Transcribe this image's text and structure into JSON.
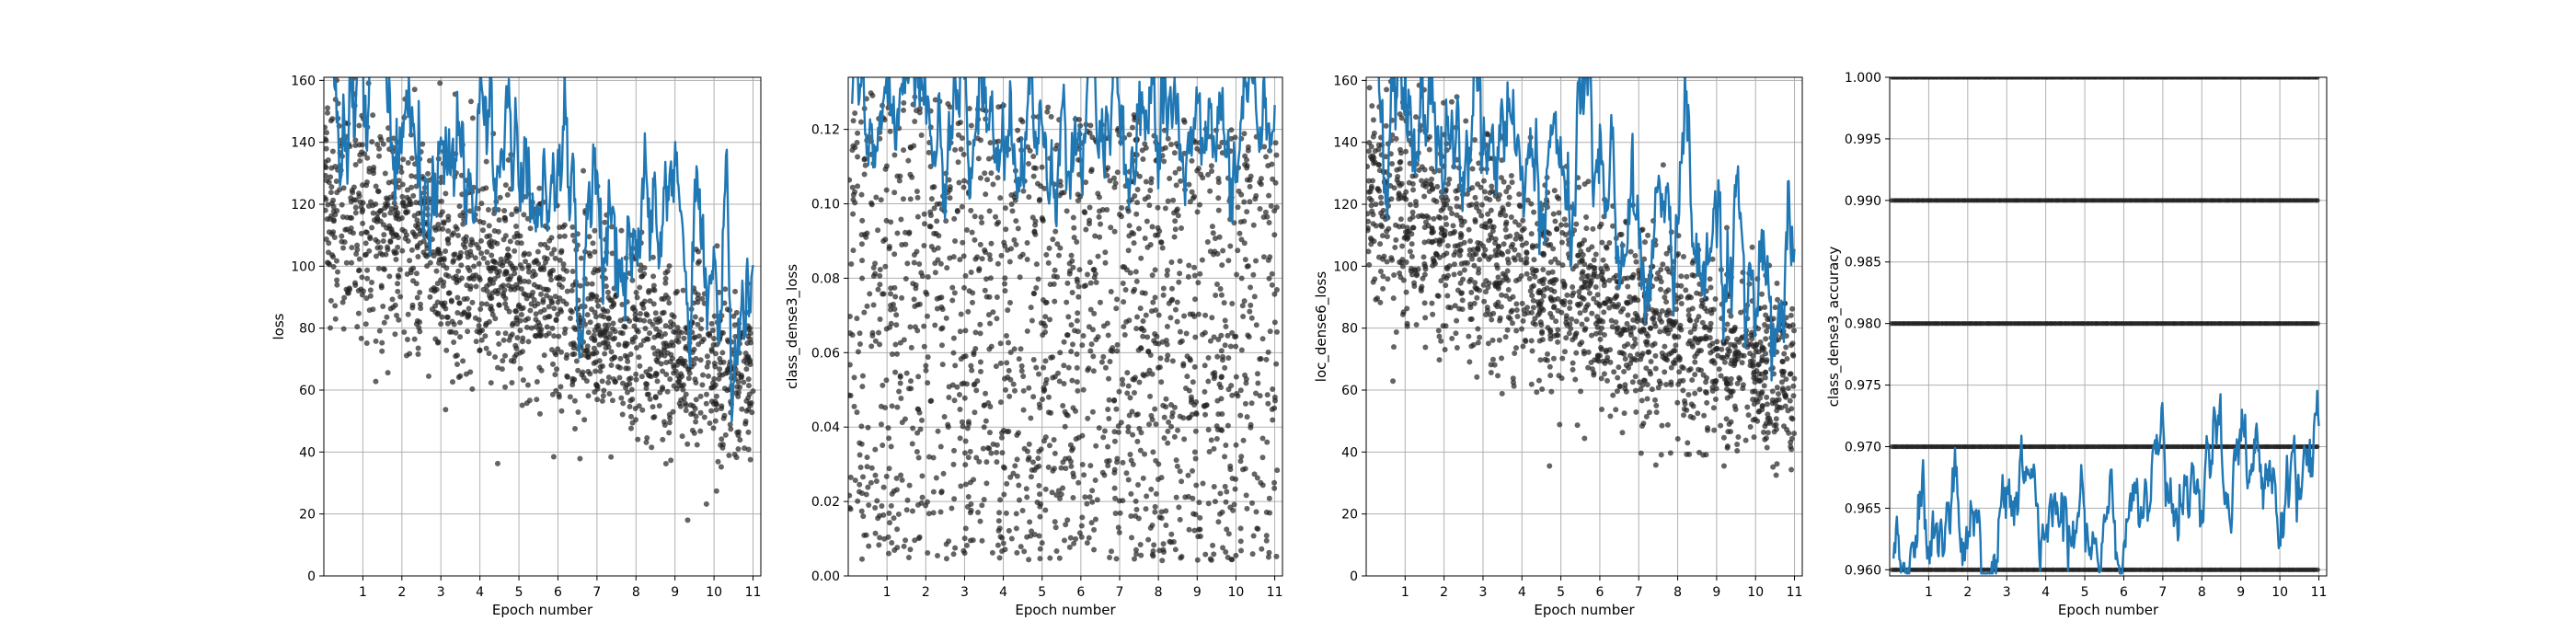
{
  "chart_data": [
    {
      "type": "scatter",
      "ylabel": "loss",
      "xlabel": "Epoch number",
      "xlim": [
        0,
        11.2
      ],
      "ylim": [
        0,
        161
      ],
      "x_ticks": [
        1,
        2,
        3,
        4,
        5,
        6,
        7,
        8,
        9,
        10,
        11
      ],
      "y_ticks": [
        0,
        20,
        40,
        60,
        80,
        100,
        120,
        140,
        160
      ],
      "y_tick_labels": [
        "0",
        "20",
        "40",
        "60",
        "80",
        "100",
        "120",
        "140",
        "160"
      ],
      "grid": true,
      "series": [
        {
          "kind": "scatter",
          "color": "#222222",
          "trend_start": 125,
          "trend_end": 65,
          "spread": 20
        },
        {
          "kind": "line",
          "color": "#1f77b4",
          "trend_start": 160,
          "trend_end": 95,
          "spread": 18
        }
      ]
    },
    {
      "type": "scatter",
      "ylabel": "class_dense3_loss",
      "xlabel": "Epoch number",
      "xlim": [
        0,
        11.2
      ],
      "ylim": [
        0,
        0.134
      ],
      "x_ticks": [
        1,
        2,
        3,
        4,
        5,
        6,
        7,
        8,
        9,
        10,
        11
      ],
      "y_ticks": [
        0,
        0.02,
        0.04,
        0.06,
        0.08,
        0.1,
        0.12
      ],
      "y_tick_labels": [
        "0.00",
        "0.02",
        "0.04",
        "0.06",
        "0.08",
        "0.10",
        "0.12"
      ],
      "grid": true,
      "series": [
        {
          "kind": "scatter",
          "color": "#222222",
          "trend_start": 0.075,
          "trend_end": 0.06,
          "spread": 0.035
        },
        {
          "kind": "line",
          "color": "#1f77b4",
          "trend_start": 0.125,
          "trend_end": 0.115,
          "spread": 0.013
        }
      ]
    },
    {
      "type": "scatter",
      "ylabel": "loc_dense6_loss",
      "xlabel": "Epoch number",
      "xlim": [
        0,
        11.2
      ],
      "ylim": [
        0,
        161
      ],
      "x_ticks": [
        1,
        2,
        3,
        4,
        5,
        6,
        7,
        8,
        9,
        10,
        11
      ],
      "y_ticks": [
        0,
        20,
        40,
        60,
        80,
        100,
        120,
        140,
        160
      ],
      "y_tick_labels": [
        "0",
        "20",
        "40",
        "60",
        "80",
        "100",
        "120",
        "140",
        "160"
      ],
      "grid": true,
      "series": [
        {
          "kind": "scatter",
          "color": "#222222",
          "trend_start": 125,
          "trend_end": 65,
          "spread": 20
        },
        {
          "kind": "line",
          "color": "#1f77b4",
          "trend_start": 160,
          "trend_end": 92,
          "spread": 18
        }
      ]
    },
    {
      "type": "scatter",
      "ylabel": "class_dense3_accuracy",
      "xlabel": "Epoch number",
      "xlim": [
        0,
        11.2
      ],
      "ylim": [
        0.9595,
        1.0
      ],
      "x_ticks": [
        1,
        2,
        3,
        4,
        5,
        6,
        7,
        8,
        9,
        10,
        11
      ],
      "y_ticks": [
        0.96,
        0.965,
        0.97,
        0.975,
        0.98,
        0.985,
        0.99,
        0.995,
        1.0
      ],
      "y_tick_labels": [
        "0.960",
        "0.965",
        "0.970",
        "0.975",
        "0.980",
        "0.985",
        "0.990",
        "0.995",
        "1.000"
      ],
      "grid": true,
      "scatter_levels": [
        0.96,
        0.97,
        0.98,
        0.99,
        1.0
      ],
      "series": [
        {
          "kind": "scatter",
          "color": "#222222"
        },
        {
          "kind": "line",
          "color": "#1f77b4",
          "trend_start": 0.9605,
          "trend_end": 0.969,
          "spread": 0.003
        }
      ]
    }
  ]
}
